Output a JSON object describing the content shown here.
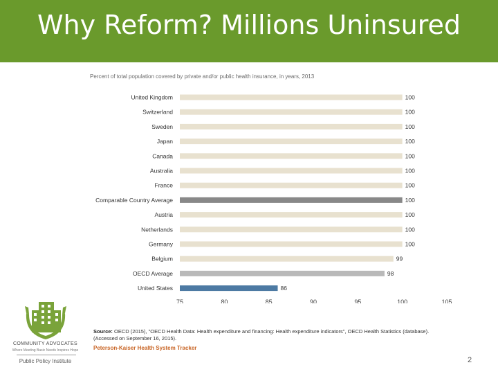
{
  "slide": {
    "title": "Why Reform? Millions Uninsured",
    "page_number": "2"
  },
  "chart_data": {
    "type": "bar",
    "orientation": "horizontal",
    "title": "Percent of total population covered by private and/or public health insurance, in years, 2013",
    "categories": [
      "United Kingdom",
      "Switzerland",
      "Sweden",
      "Japan",
      "Canada",
      "Australia",
      "France",
      "Comparable Country Average",
      "Austria",
      "Netherlands",
      "Germany",
      "Belgium",
      "OECD Average",
      "United States"
    ],
    "values": [
      100,
      100,
      100,
      100,
      100,
      100,
      100,
      100,
      100,
      100,
      100,
      99,
      98,
      86
    ],
    "value_labels": [
      "100",
      "100",
      "100",
      "100",
      "100",
      "100",
      "100",
      "100",
      "100",
      "100",
      "100",
      "99",
      "98",
      "86"
    ],
    "xlim": [
      75,
      105
    ],
    "xticks": [
      "75",
      "80",
      "85",
      "90",
      "95",
      "100",
      "105"
    ],
    "grid": false,
    "colors": {
      "default": "#e8e1cf",
      "Comparable Country Average": "#888888",
      "OECD Average": "#b9b9b9",
      "United States": "#4d7aa3"
    }
  },
  "source": {
    "label": "Source:",
    "text": "OECD (2015), \"OECD Health Data: Health expenditure and financing: Health expenditure indicators\", OECD Health Statistics (database). (Accessed on September 16, 2015).",
    "tracker": "Peterson-Kaiser Health System Tracker"
  },
  "logo": {
    "name": "COMMUNITY ADVOCATES",
    "tagline": "Where Meeting Basic Needs Inspires Hope",
    "institute": "Public Policy Institute"
  },
  "colors": {
    "header": "#6a9a2c",
    "logo_green": "#7aa33a",
    "tracker": "#c86424"
  }
}
